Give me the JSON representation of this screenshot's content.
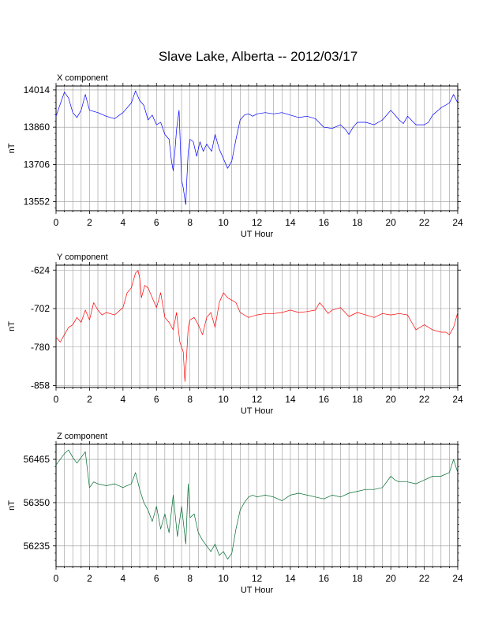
{
  "title": "Slave Lake, Alberta -- 2012/03/17",
  "chart_data": [
    {
      "type": "line",
      "panel_title": "X component",
      "xlabel": "UT Hour",
      "ylabel": "nT",
      "color": "#0000ff",
      "xlim": [
        0,
        24
      ],
      "ylim": [
        13515,
        14030
      ],
      "xticks": [
        0,
        2,
        4,
        6,
        8,
        10,
        12,
        14,
        16,
        18,
        20,
        22,
        24
      ],
      "yticks": [
        13552,
        13706,
        13860,
        14014
      ],
      "grid": true,
      "series": [
        {
          "x": [
            0,
            0.25,
            0.5,
            0.75,
            1.0,
            1.25,
            1.5,
            1.75,
            2.0,
            2.5,
            3.0,
            3.5,
            4.0,
            4.5,
            4.75,
            5.0,
            5.25,
            5.5,
            5.75,
            6.0,
            6.25,
            6.5,
            6.75,
            6.9,
            7.0,
            7.1,
            7.2,
            7.35,
            7.5,
            7.6,
            7.7,
            7.75,
            7.8,
            7.9,
            8.0,
            8.2,
            8.4,
            8.6,
            8.8,
            9.0,
            9.3,
            9.5,
            9.75,
            10.0,
            10.25,
            10.5,
            10.75,
            11.0,
            11.25,
            11.5,
            11.75,
            12.0,
            12.5,
            13.0,
            13.5,
            14.0,
            14.5,
            15.0,
            15.5,
            16.0,
            16.5,
            17.0,
            17.3,
            17.5,
            17.75,
            18.0,
            18.5,
            19.0,
            19.5,
            20.0,
            20.5,
            20.75,
            21.0,
            21.5,
            22.0,
            22.25,
            22.5,
            23.0,
            23.5,
            23.75,
            24.0
          ],
          "y": [
            13905,
            13955,
            14005,
            13980,
            13920,
            13900,
            13930,
            13995,
            13930,
            13920,
            13905,
            13895,
            13920,
            13960,
            14010,
            13970,
            13950,
            13890,
            13910,
            13870,
            13880,
            13830,
            13810,
            13720,
            13680,
            13760,
            13850,
            13930,
            13640,
            13610,
            13560,
            13540,
            13620,
            13760,
            13810,
            13800,
            13740,
            13800,
            13760,
            13790,
            13760,
            13830,
            13770,
            13730,
            13690,
            13720,
            13810,
            13890,
            13910,
            13915,
            13905,
            13915,
            13920,
            13915,
            13920,
            13910,
            13900,
            13905,
            13895,
            13860,
            13855,
            13870,
            13850,
            13830,
            13860,
            13880,
            13880,
            13870,
            13890,
            13930,
            13890,
            13875,
            13905,
            13870,
            13870,
            13880,
            13910,
            13940,
            13960,
            13995,
            13960
          ]
        }
      ]
    },
    {
      "type": "line",
      "panel_title": "Y component",
      "xlabel": "UT Hour",
      "ylabel": "nT",
      "color": "#ff0000",
      "xlim": [
        0,
        24
      ],
      "ylim": [
        -862,
        -614
      ],
      "xticks": [
        0,
        2,
        4,
        6,
        8,
        10,
        12,
        14,
        16,
        18,
        20,
        22,
        24
      ],
      "yticks": [
        -624,
        -702,
        -780,
        -858
      ],
      "grid": true,
      "series": [
        {
          "x": [
            0,
            0.25,
            0.5,
            0.75,
            1.0,
            1.25,
            1.5,
            1.75,
            2.0,
            2.25,
            2.5,
            2.75,
            3.0,
            3.5,
            4.0,
            4.25,
            4.5,
            4.75,
            4.9,
            5.0,
            5.1,
            5.3,
            5.5,
            5.75,
            6.0,
            6.25,
            6.5,
            6.75,
            7.0,
            7.2,
            7.4,
            7.6,
            7.7,
            7.8,
            7.9,
            8.0,
            8.25,
            8.5,
            8.75,
            9.0,
            9.25,
            9.5,
            9.75,
            10.0,
            10.25,
            10.5,
            10.75,
            11.0,
            11.5,
            12.0,
            12.5,
            13.0,
            13.5,
            14.0,
            14.5,
            15.0,
            15.5,
            15.75,
            16.0,
            16.25,
            16.5,
            17.0,
            17.5,
            18.0,
            18.5,
            19.0,
            19.5,
            20.0,
            20.5,
            21.0,
            21.25,
            21.5,
            22.0,
            22.5,
            23.0,
            23.3,
            23.5,
            23.75,
            24.0
          ],
          "y": [
            -760,
            -770,
            -755,
            -740,
            -735,
            -720,
            -730,
            -705,
            -725,
            -690,
            -705,
            -715,
            -710,
            -715,
            -700,
            -670,
            -660,
            -630,
            -625,
            -640,
            -680,
            -655,
            -660,
            -680,
            -700,
            -670,
            -720,
            -730,
            -745,
            -710,
            -770,
            -790,
            -850,
            -800,
            -740,
            -725,
            -720,
            -735,
            -755,
            -720,
            -710,
            -740,
            -690,
            -670,
            -680,
            -685,
            -690,
            -710,
            -720,
            -715,
            -712,
            -712,
            -710,
            -705,
            -710,
            -708,
            -705,
            -690,
            -700,
            -712,
            -705,
            -700,
            -718,
            -710,
            -715,
            -720,
            -712,
            -715,
            -712,
            -715,
            -730,
            -745,
            -735,
            -745,
            -750,
            -750,
            -755,
            -740,
            -710
          ]
        }
      ]
    },
    {
      "type": "line",
      "panel_title": "Z component",
      "xlabel": "UT Hour",
      "ylabel": "nT",
      "color": "#006b2e",
      "xlim": [
        0,
        24
      ],
      "ylim": [
        56180,
        56505
      ],
      "xticks": [
        0,
        2,
        4,
        6,
        8,
        10,
        12,
        14,
        16,
        18,
        20,
        22,
        24
      ],
      "yticks": [
        56235,
        56350,
        56465
      ],
      "grid": true,
      "series": [
        {
          "x": [
            0,
            0.25,
            0.5,
            0.75,
            1.0,
            1.25,
            1.5,
            1.75,
            2.0,
            2.25,
            2.5,
            3.0,
            3.5,
            4.0,
            4.5,
            4.75,
            5.0,
            5.25,
            5.5,
            5.75,
            6.0,
            6.25,
            6.5,
            6.75,
            7.0,
            7.25,
            7.5,
            7.75,
            7.9,
            8.0,
            8.25,
            8.5,
            8.75,
            9.0,
            9.25,
            9.5,
            9.75,
            10.0,
            10.25,
            10.5,
            10.75,
            11.0,
            11.25,
            11.5,
            11.75,
            12.0,
            12.5,
            13.0,
            13.5,
            14.0,
            14.5,
            15.0,
            15.5,
            16.0,
            16.5,
            17.0,
            17.5,
            18.0,
            18.5,
            19.0,
            19.5,
            20.0,
            20.25,
            20.5,
            21.0,
            21.5,
            22.0,
            22.5,
            23.0,
            23.5,
            23.75,
            24.0
          ],
          "y": [
            56450,
            56465,
            56480,
            56490,
            56470,
            56455,
            56470,
            56485,
            56390,
            56405,
            56400,
            56395,
            56400,
            56390,
            56400,
            56430,
            56385,
            56350,
            56330,
            56300,
            56340,
            56280,
            56320,
            56270,
            56370,
            56260,
            56340,
            56240,
            56400,
            56310,
            56320,
            56270,
            56250,
            56235,
            56220,
            56240,
            56210,
            56220,
            56200,
            56215,
            56280,
            56330,
            56350,
            56365,
            56370,
            56365,
            56370,
            56365,
            56355,
            56370,
            56375,
            56370,
            56365,
            56360,
            56370,
            56365,
            56375,
            56380,
            56385,
            56385,
            56390,
            56420,
            56410,
            56405,
            56405,
            56400,
            56410,
            56420,
            56420,
            56430,
            56465,
            56430
          ]
        }
      ]
    }
  ]
}
